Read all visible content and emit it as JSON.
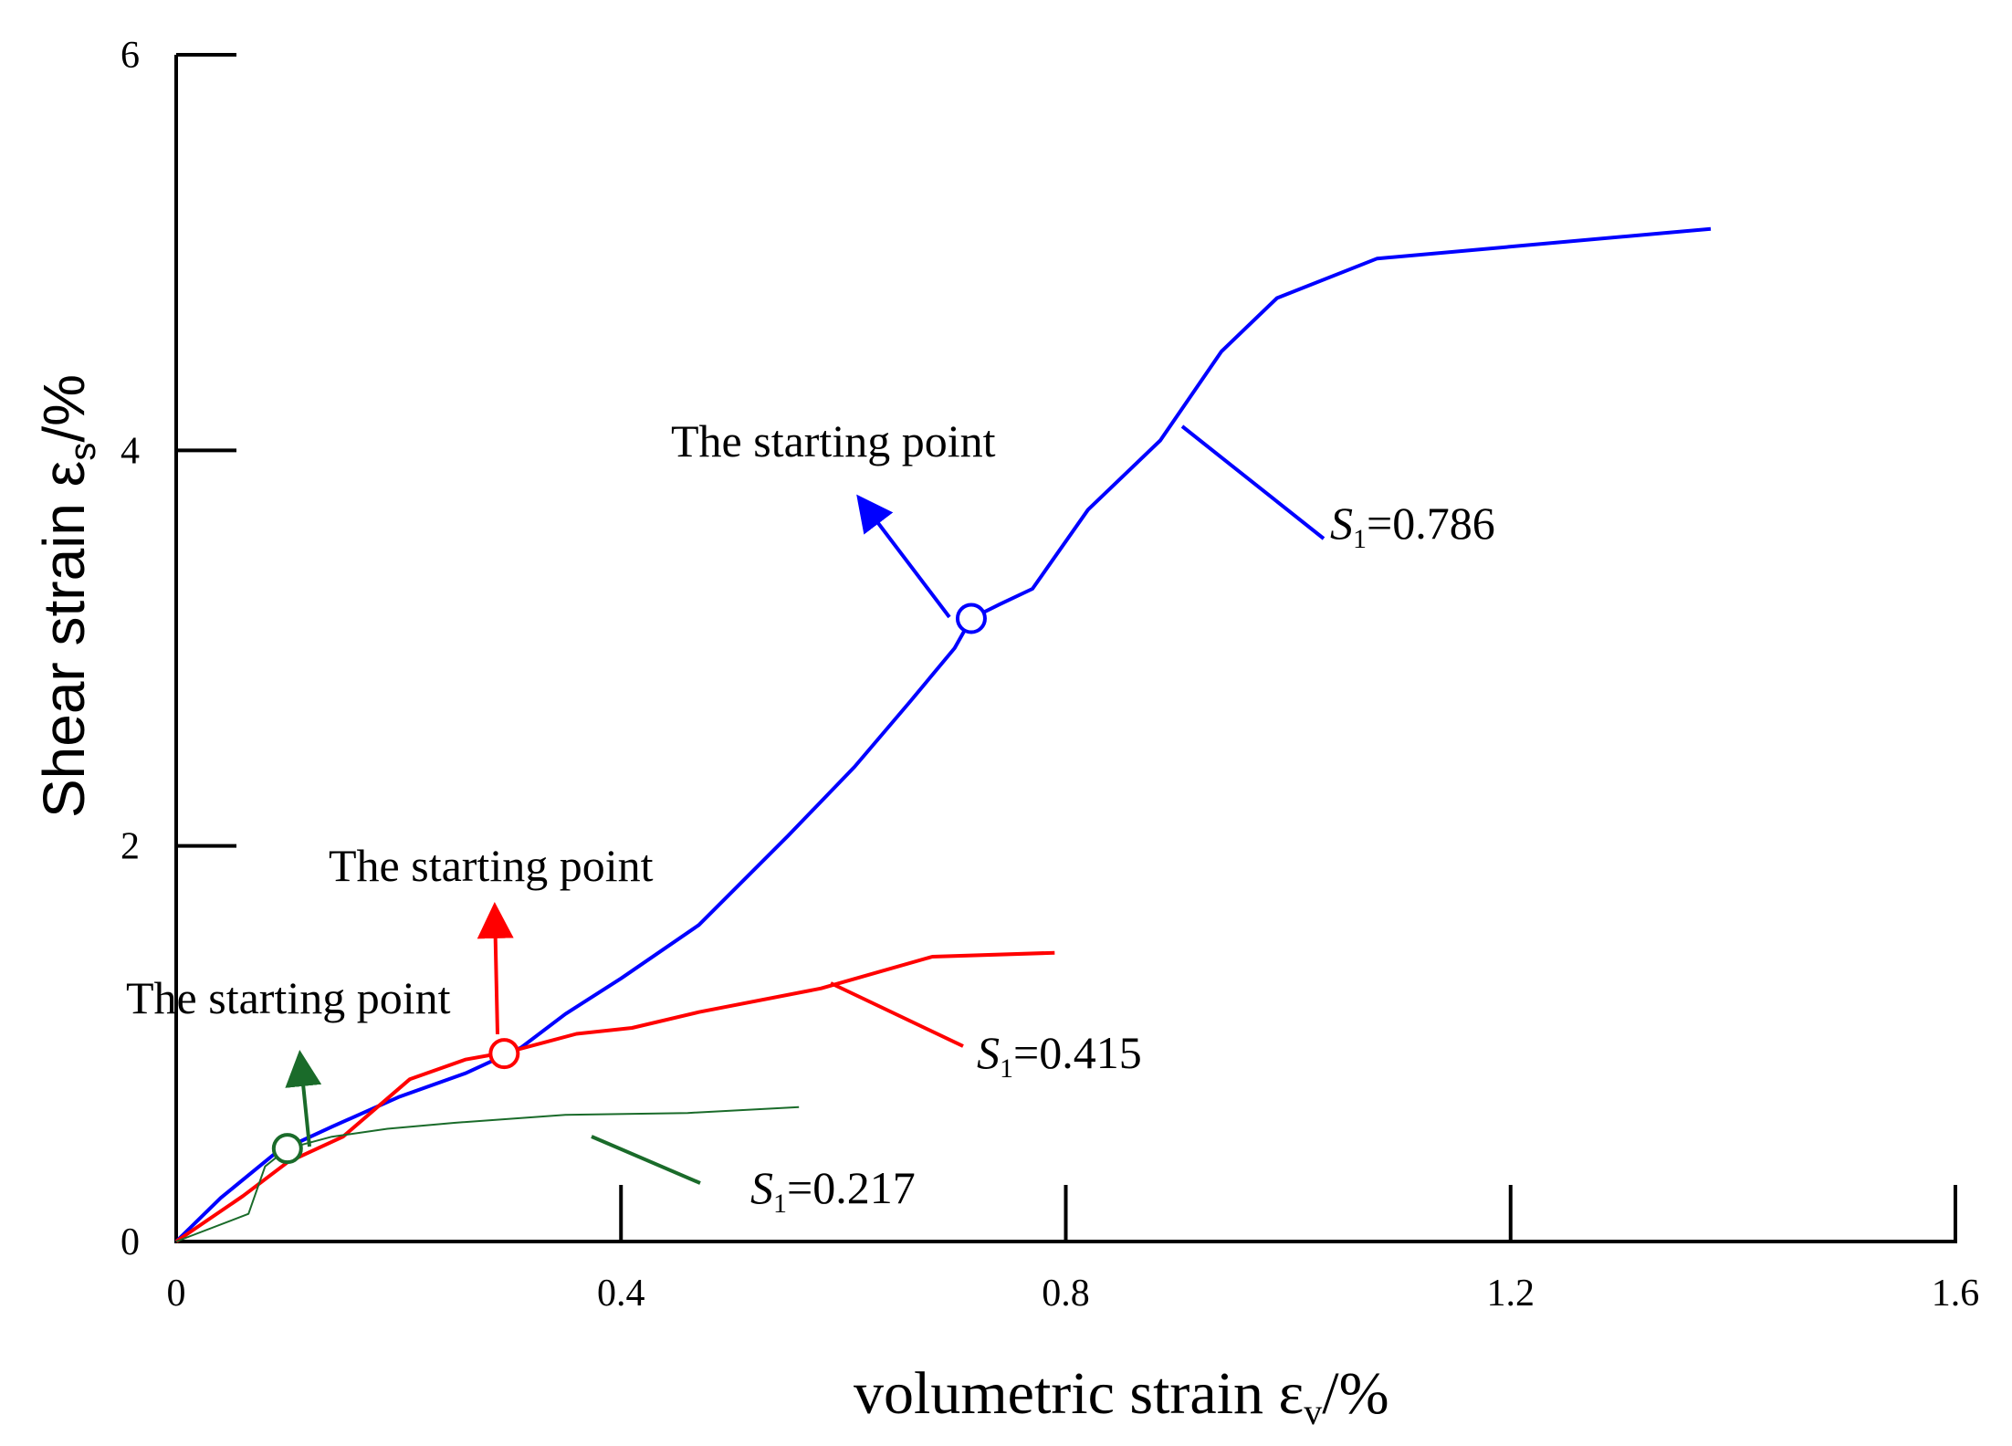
{
  "chart_data": {
    "type": "line",
    "xlabel": "volumetric strain ε",
    "xlabel_sub": "v",
    "xlabel_unit": "/%",
    "ylabel": "Shear strain ε",
    "ylabel_sub": "s",
    "ylabel_unit": "/%",
    "xlim": [
      0,
      1.6
    ],
    "ylim": [
      0,
      6
    ],
    "xticks": [
      0,
      0.4,
      0.8,
      1.2,
      1.6
    ],
    "xtick_labels": [
      "0",
      "0.4",
      "0.8",
      "1.2",
      "1.6"
    ],
    "yticks": [
      0,
      2,
      4,
      6
    ],
    "ytick_labels": [
      "0",
      "2",
      "4",
      "6"
    ],
    "series": [
      {
        "name": "S1=0.786",
        "label_symbol": "S",
        "label_sub": "1",
        "label_value": "=0.786",
        "color": "#0000ff",
        "x": [
          0,
          0.04,
          0.09,
          0.14,
          0.2,
          0.26,
          0.31,
          0.35,
          0.4,
          0.47,
          0.55,
          0.61,
          0.66,
          0.7,
          0.715,
          0.74,
          0.77,
          0.82,
          0.885,
          0.94,
          0.99,
          1.08,
          1.38
        ],
        "y": [
          0,
          0.22,
          0.45,
          0.58,
          0.73,
          0.85,
          0.98,
          1.15,
          1.33,
          1.6,
          2.05,
          2.4,
          2.73,
          3.0,
          3.15,
          3.22,
          3.3,
          3.7,
          4.05,
          4.5,
          4.77,
          4.97,
          5.12
        ]
      },
      {
        "name": "S1=0.415",
        "label_symbol": "S",
        "label_sub": "1",
        "label_value": "=0.415",
        "color": "#ff0000",
        "x": [
          0,
          0.06,
          0.1,
          0.15,
          0.21,
          0.26,
          0.3,
          0.36,
          0.41,
          0.47,
          0.58,
          0.68,
          0.79
        ],
        "y": [
          0,
          0.23,
          0.4,
          0.53,
          0.82,
          0.92,
          0.96,
          1.05,
          1.08,
          1.16,
          1.28,
          1.44,
          1.46
        ]
      },
      {
        "name": "S1=0.217",
        "label_symbol": "S",
        "label_sub": "1",
        "label_value": "=0.217",
        "color": "#1a6b2a",
        "x": [
          0,
          0.065,
          0.08,
          0.1,
          0.14,
          0.19,
          0.25,
          0.35,
          0.46,
          0.56
        ],
        "y": [
          0,
          0.14,
          0.38,
          0.47,
          0.53,
          0.57,
          0.6,
          0.64,
          0.65,
          0.68
        ]
      }
    ],
    "starting_points": [
      {
        "series": "S1=0.786",
        "x": 0.715,
        "y": 3.15,
        "label": "The starting point"
      },
      {
        "series": "S1=0.415",
        "x": 0.295,
        "y": 0.95,
        "label": "The starting point"
      },
      {
        "series": "S1=0.217",
        "x": 0.1,
        "y": 0.47,
        "label": "The starting point"
      }
    ]
  }
}
